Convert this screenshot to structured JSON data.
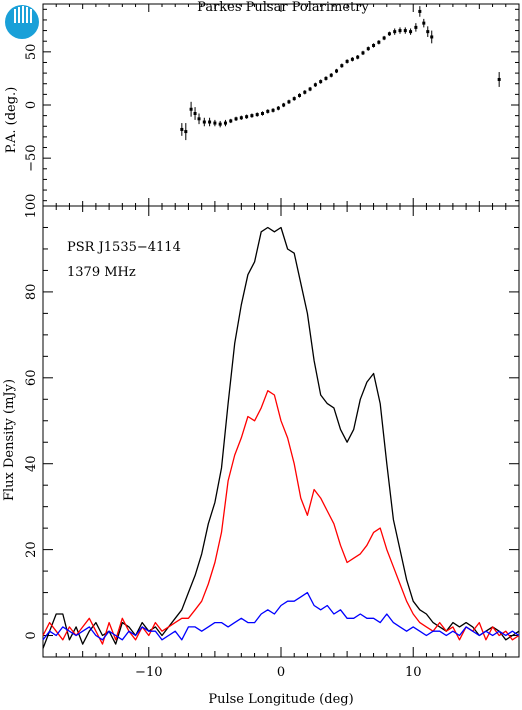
{
  "figure_title": "Parkes Pulsar Polarimetry",
  "logo": {
    "text": "CSIRO",
    "color": "#1aa0d8"
  },
  "chart_data": [
    {
      "id": "pa",
      "type": "scatter",
      "ylabel": "P.A. (deg.)",
      "ylim": [
        -95,
        95
      ],
      "yticks": [
        -50,
        0,
        50
      ],
      "xlim": [
        -18,
        18
      ],
      "xticks": [
        -10,
        0,
        10
      ],
      "series": [
        {
          "points": [
            {
              "x": -7.5,
              "y": -23,
              "err": 6
            },
            {
              "x": -7.2,
              "y": -25,
              "err": 8
            },
            {
              "x": -6.8,
              "y": -4,
              "err": 7
            },
            {
              "x": -6.5,
              "y": -8,
              "err": 6
            },
            {
              "x": -6.2,
              "y": -13,
              "err": 5
            },
            {
              "x": -5.8,
              "y": -16,
              "err": 4
            },
            {
              "x": -5.4,
              "y": -16,
              "err": 4
            },
            {
              "x": -5.0,
              "y": -17,
              "err": 3
            },
            {
              "x": -4.6,
              "y": -18,
              "err": 3
            },
            {
              "x": -4.2,
              "y": -17,
              "err": 3
            },
            {
              "x": -3.8,
              "y": -15,
              "err": 2
            },
            {
              "x": -3.4,
              "y": -13,
              "err": 2
            },
            {
              "x": -3.0,
              "y": -12,
              "err": 2
            },
            {
              "x": -2.6,
              "y": -11,
              "err": 2
            },
            {
              "x": -2.2,
              "y": -10,
              "err": 2
            },
            {
              "x": -1.8,
              "y": -9,
              "err": 2
            },
            {
              "x": -1.4,
              "y": -8,
              "err": 2
            },
            {
              "x": -1.0,
              "y": -6,
              "err": 2
            },
            {
              "x": -0.6,
              "y": -5,
              "err": 2
            },
            {
              "x": -0.2,
              "y": -3,
              "err": 2
            },
            {
              "x": 0.2,
              "y": 0,
              "err": 2
            },
            {
              "x": 0.6,
              "y": 3,
              "err": 2
            },
            {
              "x": 1.0,
              "y": 6,
              "err": 2
            },
            {
              "x": 1.4,
              "y": 9,
              "err": 2
            },
            {
              "x": 1.8,
              "y": 12,
              "err": 2
            },
            {
              "x": 2.2,
              "y": 15,
              "err": 2
            },
            {
              "x": 2.6,
              "y": 19,
              "err": 2
            },
            {
              "x": 3.0,
              "y": 22,
              "err": 2
            },
            {
              "x": 3.4,
              "y": 25,
              "err": 2
            },
            {
              "x": 3.8,
              "y": 28,
              "err": 2
            },
            {
              "x": 4.2,
              "y": 32,
              "err": 2
            },
            {
              "x": 4.6,
              "y": 37,
              "err": 2
            },
            {
              "x": 5.0,
              "y": 41,
              "err": 2
            },
            {
              "x": 5.4,
              "y": 43,
              "err": 2
            },
            {
              "x": 5.8,
              "y": 45,
              "err": 2
            },
            {
              "x": 6.2,
              "y": 49,
              "err": 2
            },
            {
              "x": 6.6,
              "y": 53,
              "err": 2
            },
            {
              "x": 7.0,
              "y": 56,
              "err": 2
            },
            {
              "x": 7.4,
              "y": 59,
              "err": 2
            },
            {
              "x": 7.8,
              "y": 63,
              "err": 2
            },
            {
              "x": 8.2,
              "y": 67,
              "err": 2
            },
            {
              "x": 8.6,
              "y": 69,
              "err": 3
            },
            {
              "x": 9.0,
              "y": 70,
              "err": 3
            },
            {
              "x": 9.4,
              "y": 70,
              "err": 3
            },
            {
              "x": 9.8,
              "y": 69,
              "err": 3
            },
            {
              "x": 10.2,
              "y": 73,
              "err": 4
            },
            {
              "x": 10.5,
              "y": 88,
              "err": 5
            },
            {
              "x": 10.8,
              "y": 77,
              "err": 4
            },
            {
              "x": 11.1,
              "y": 69,
              "err": 5
            },
            {
              "x": 11.4,
              "y": 64,
              "err": 6
            },
            {
              "x": 16.5,
              "y": 24,
              "err": 7
            }
          ]
        }
      ]
    },
    {
      "id": "flux",
      "type": "line",
      "xlabel": "Pulse Longitude (deg)",
      "ylabel": "Flux Density (mJy)",
      "xlim": [
        -18,
        18
      ],
      "ylim": [
        -5,
        100
      ],
      "xticks": [
        -10,
        0,
        10
      ],
      "yticks": [
        0,
        20,
        40,
        60,
        80,
        100
      ],
      "annotations": [
        "PSR J1535−4114",
        "1379 MHz"
      ],
      "x": [
        -18,
        -17.5,
        -17,
        -16.5,
        -16,
        -15.5,
        -15,
        -14.5,
        -14,
        -13.5,
        -13,
        -12.5,
        -12,
        -11.5,
        -11,
        -10.5,
        -10,
        -9.5,
        -9,
        -8.5,
        -8,
        -7.5,
        -7,
        -6.5,
        -6,
        -5.5,
        -5,
        -4.5,
        -4,
        -3.5,
        -3,
        -2.5,
        -2,
        -1.5,
        -1,
        -0.5,
        0,
        0.5,
        1,
        1.5,
        2,
        2.5,
        3,
        3.5,
        4,
        4.5,
        5,
        5.5,
        6,
        6.5,
        7,
        7.5,
        8,
        8.5,
        9,
        9.5,
        10,
        10.5,
        11,
        11.5,
        12,
        12.5,
        13,
        13.5,
        14,
        14.5,
        15,
        15.5,
        16,
        16.5,
        17,
        17.5,
        18
      ],
      "series": [
        {
          "color": "#000000",
          "values": [
            -3,
            1,
            5,
            5,
            -1,
            2,
            -2,
            1,
            3,
            0,
            1,
            -2,
            3,
            2,
            0,
            3,
            1,
            2,
            0,
            2,
            4,
            6,
            10,
            14,
            19,
            26,
            31,
            39,
            54,
            68,
            77,
            84,
            87,
            94,
            95,
            94,
            95,
            90,
            89,
            82,
            75,
            64,
            56,
            54,
            53,
            48,
            45,
            48,
            55,
            59,
            61,
            54,
            40,
            27,
            20,
            13,
            8,
            6,
            5,
            3,
            2,
            1,
            3,
            2,
            3,
            2,
            0,
            1,
            2,
            1,
            -1,
            0,
            1
          ]
        },
        {
          "color": "#ff0000",
          "values": [
            0,
            3,
            1,
            -1,
            2,
            0,
            2,
            4,
            1,
            -2,
            3,
            -1,
            4,
            1,
            -1,
            2,
            0,
            3,
            1,
            2,
            3,
            4,
            4,
            6,
            8,
            12,
            17,
            24,
            36,
            42,
            46,
            51,
            50,
            53,
            57,
            56,
            50,
            46,
            40,
            32,
            28,
            34,
            32,
            29,
            26,
            21,
            17,
            18,
            19,
            21,
            24,
            25,
            20,
            16,
            12,
            8,
            5,
            3,
            2,
            1,
            3,
            1,
            2,
            -1,
            2,
            1,
            3,
            -1,
            2,
            0,
            1,
            -1,
            0
          ]
        },
        {
          "color": "#0000ff",
          "values": [
            -1,
            1,
            0,
            2,
            1,
            0,
            1,
            2,
            0,
            -1,
            1,
            0,
            -1,
            1,
            0,
            2,
            1,
            1,
            -1,
            0,
            1,
            -1,
            2,
            2,
            1,
            2,
            3,
            3,
            2,
            3,
            4,
            3,
            3,
            5,
            6,
            5,
            7,
            8,
            8,
            9,
            10,
            7,
            6,
            7,
            5,
            6,
            4,
            4,
            5,
            4,
            4,
            3,
            5,
            3,
            2,
            1,
            2,
            1,
            0,
            1,
            1,
            0,
            1,
            0,
            2,
            1,
            0,
            1,
            0,
            1,
            0,
            1,
            0
          ]
        }
      ]
    }
  ]
}
